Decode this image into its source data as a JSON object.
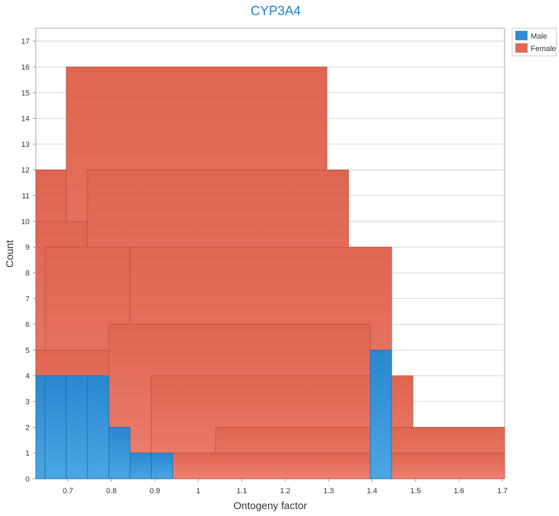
{
  "chart_data": {
    "type": "bar",
    "title": "CYP3A4",
    "xlabel": "Ontogeny factor",
    "ylabel": "Count",
    "xlim": [
      0.626,
      1.705
    ],
    "ylim": [
      0,
      17.5
    ],
    "xticks": [
      0.7,
      0.8,
      0.9,
      1,
      1.1,
      1.2,
      1.3,
      1.4,
      1.5,
      1.6,
      1.7
    ],
    "xtick_labels": [
      "0.7",
      "0.8",
      "0.9",
      "1",
      "1.1",
      "1.2",
      "1.3",
      "1.4",
      "1.5",
      "1.6",
      "1.7"
    ],
    "yticks": [
      0,
      1,
      2,
      3,
      4,
      5,
      6,
      7,
      8,
      9,
      10,
      11,
      12,
      13,
      14,
      15,
      16,
      17
    ],
    "ytick_labels": [
      "0",
      "1",
      "2",
      "3",
      "4",
      "5",
      "6",
      "7",
      "8",
      "9",
      "10",
      "11",
      "12",
      "13",
      "14",
      "15",
      "16",
      "17"
    ],
    "grid": true,
    "legend_position": "top-right",
    "series": [
      {
        "name": "Male",
        "color": "#2f8ed4",
        "bars": [
          {
            "x0": 0.626,
            "x1": 0.647,
            "value": 4
          },
          {
            "x0": 0.647,
            "x1": 0.696,
            "value": 4
          },
          {
            "x0": 0.696,
            "x1": 0.745,
            "value": 4
          },
          {
            "x0": 0.745,
            "x1": 0.794,
            "value": 4
          },
          {
            "x0": 0.794,
            "x1": 0.843,
            "value": 2
          },
          {
            "x0": 0.843,
            "x1": 0.892,
            "value": 1
          },
          {
            "x0": 0.892,
            "x1": 0.941,
            "value": 1
          },
          {
            "x0": 1.396,
            "x1": 1.445,
            "value": 5
          }
        ]
      },
      {
        "name": "Female",
        "color": "#e26a55",
        "bars": [
          {
            "x0": 0.626,
            "x1": 0.696,
            "value": 12
          },
          {
            "x0": 0.696,
            "x1": 1.296,
            "value": 16
          },
          {
            "x0": 0.626,
            "x1": 0.745,
            "value": 10
          },
          {
            "x0": 0.745,
            "x1": 1.346,
            "value": 12
          },
          {
            "x0": 0.647,
            "x1": 0.843,
            "value": 9
          },
          {
            "x0": 0.843,
            "x1": 1.445,
            "value": 9
          },
          {
            "x0": 0.626,
            "x1": 1.396,
            "value": 5
          },
          {
            "x0": 0.794,
            "x1": 1.396,
            "value": 6
          },
          {
            "x0": 0.892,
            "x1": 1.494,
            "value": 4
          },
          {
            "x0": 0.626,
            "x1": 0.794,
            "value": 3
          },
          {
            "x0": 1.04,
            "x1": 1.705,
            "value": 2
          },
          {
            "x0": 0.941,
            "x1": 1.705,
            "value": 1
          }
        ]
      }
    ]
  }
}
